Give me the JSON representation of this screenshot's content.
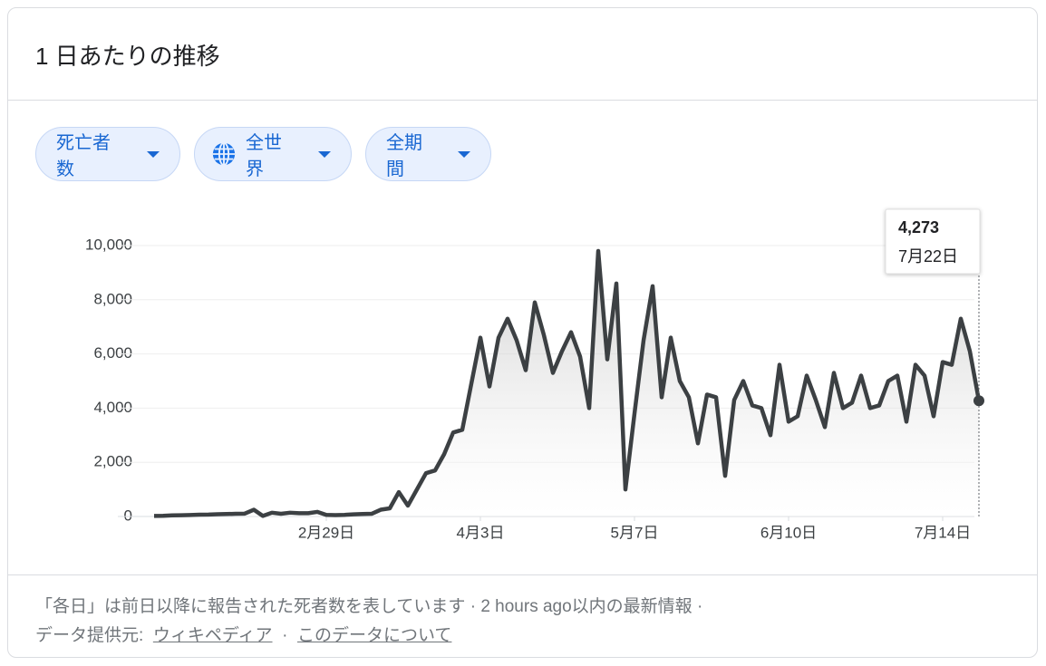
{
  "header": {
    "title": "1 日あたりの推移"
  },
  "filters": [
    "死亡者数",
    "全世界",
    "全期間"
  ],
  "chart_data": {
    "type": "line",
    "color": "#3c4043",
    "categories": [
      null,
      null,
      null,
      null,
      null,
      null,
      null,
      null,
      null,
      null,
      null,
      null,
      null,
      null,
      null,
      null,
      null,
      null,
      null,
      "2月29日",
      null,
      null,
      null,
      null,
      null,
      null,
      null,
      null,
      null,
      null,
      null,
      null,
      null,
      null,
      null,
      null,
      "4月3日",
      null,
      null,
      null,
      null,
      null,
      null,
      null,
      null,
      null,
      null,
      null,
      null,
      null,
      null,
      null,
      null,
      "5月7日",
      null,
      null,
      null,
      null,
      null,
      null,
      null,
      null,
      null,
      null,
      null,
      null,
      null,
      null,
      null,
      null,
      "6月10日",
      null,
      null,
      null,
      null,
      null,
      null,
      null,
      null,
      null,
      null,
      null,
      null,
      null,
      null,
      null,
      null,
      "7月14日",
      null,
      null,
      null,
      null
    ],
    "values": [
      20,
      25,
      40,
      45,
      55,
      65,
      70,
      85,
      90,
      100,
      105,
      250,
      20,
      140,
      100,
      140,
      120,
      120,
      170,
      60,
      50,
      60,
      80,
      90,
      100,
      250,
      300,
      900,
      400,
      1000,
      1600,
      1700,
      2300,
      3100,
      3200,
      4900,
      6600,
      4800,
      6600,
      7300,
      6500,
      5400,
      7900,
      6700,
      5300,
      6100,
      6800,
      5900,
      4000,
      9800,
      5800,
      8600,
      1000,
      3800,
      6500,
      8500,
      4400,
      6600,
      5000,
      4400,
      2700,
      4500,
      4400,
      1500,
      4300,
      5000,
      4100,
      4000,
      3000,
      5600,
      3500,
      3700,
      5200,
      4300,
      3300,
      5300,
      4000,
      4200,
      5200,
      4000,
      4100,
      5000,
      5200,
      3500,
      5600,
      5200,
      3700,
      5700,
      5600,
      7300,
      6100,
      4273
    ],
    "ylim": [
      0,
      10000
    ],
    "yticks": [
      0,
      {
        "value": 2000,
        "label": "2,000"
      },
      {
        "value": 4000,
        "label": "4,000"
      },
      {
        "value": 6000,
        "label": "6,000"
      },
      {
        "value": 8000,
        "label": "8,000"
      },
      {
        "value": 10000,
        "label": "10,000"
      }
    ],
    "grid": true,
    "tooltip": {
      "value": 4273,
      "label": "4,273",
      "date": "7月22日"
    }
  },
  "footer": {
    "note": "「各日」は前日以降に報告された死者数を表しています · 2 hours ago以内の最新情報 ·",
    "source_label": "データ提供元:",
    "source_link": "ウィキペディア",
    "separator": "·",
    "about_link": "このデータについて"
  }
}
